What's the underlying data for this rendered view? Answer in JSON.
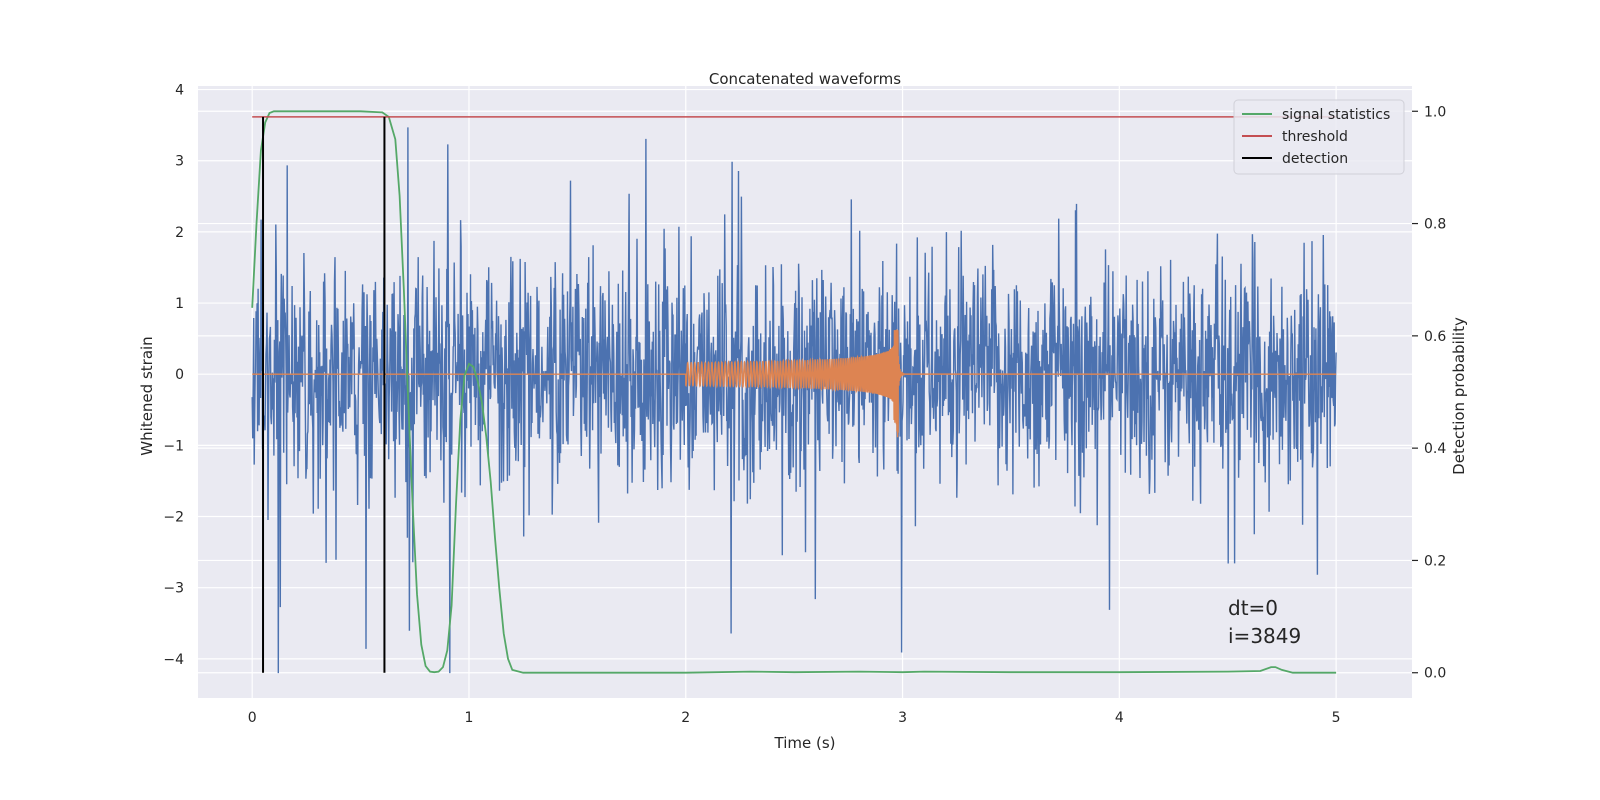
{
  "chart_data": {
    "type": "line",
    "title": "Concatenated waveforms",
    "xlabel": "Time (s)",
    "ylabel_left": "Whitened strain",
    "ylabel_right": "Detection probability",
    "xlim": [
      -0.25,
      5.35
    ],
    "ylim_left": [
      -4.55,
      4.05
    ],
    "ylim_right": [
      -0.045,
      1.045
    ],
    "x_ticks": [
      0,
      1,
      2,
      3,
      4,
      5
    ],
    "y_ticks_left": [
      -4,
      -3,
      -2,
      -1,
      0,
      1,
      2,
      3,
      4
    ],
    "y_ticks_right": [
      0.0,
      0.2,
      0.4,
      0.6,
      0.8,
      1.0
    ],
    "x_tick_labels": [
      "0",
      "1",
      "2",
      "3",
      "4",
      "5"
    ],
    "y_tick_labels_left": [
      "−4",
      "−3",
      "−2",
      "−1",
      "0",
      "1",
      "2",
      "3",
      "4"
    ],
    "y_tick_labels_right": [
      "0.0",
      "0.2",
      "0.4",
      "0.6",
      "0.8",
      "1.0"
    ],
    "grid": true,
    "background": "#eaeaf2",
    "legend_position": "top-right",
    "series": [
      {
        "name": "",
        "axis": "left",
        "color": "#4c72b0",
        "description": "whitened noisy strain",
        "x_range": [
          0,
          5
        ],
        "amplitude_envelope": [
          -4.2,
          3.65
        ]
      },
      {
        "name": "",
        "axis": "left",
        "color": "#dd8452",
        "x_range": [
          0,
          5
        ],
        "chirp_start": 2.0,
        "chirp_merger": 2.98,
        "chirp_peak": 0.62,
        "chirp_min": -0.9
      },
      {
        "name": "signal statistics",
        "axis": "right",
        "color": "#55a868",
        "x": [
          0.0,
          0.02,
          0.04,
          0.06,
          0.08,
          0.1,
          0.2,
          0.3,
          0.4,
          0.5,
          0.6,
          0.63,
          0.66,
          0.68,
          0.7,
          0.72,
          0.74,
          0.76,
          0.78,
          0.8,
          0.82,
          0.84,
          0.86,
          0.88,
          0.9,
          0.92,
          0.94,
          0.96,
          0.98,
          1.0,
          1.02,
          1.04,
          1.06,
          1.08,
          1.1,
          1.12,
          1.14,
          1.16,
          1.18,
          1.2,
          1.25,
          1.5,
          2.0,
          2.3,
          2.5,
          2.8,
          3.0,
          3.1,
          3.5,
          4.0,
          4.5,
          4.65,
          4.7,
          4.72,
          4.75,
          4.8,
          5.0
        ],
        "values": [
          0.65,
          0.8,
          0.93,
          0.98,
          0.997,
          1.0,
          1.0,
          1.0,
          1.0,
          1.0,
          0.998,
          0.99,
          0.95,
          0.85,
          0.68,
          0.48,
          0.3,
          0.14,
          0.05,
          0.012,
          0.002,
          0.001,
          0.002,
          0.01,
          0.04,
          0.12,
          0.3,
          0.45,
          0.53,
          0.55,
          0.545,
          0.52,
          0.48,
          0.42,
          0.34,
          0.24,
          0.15,
          0.07,
          0.025,
          0.005,
          0.0,
          0.0,
          0.0,
          0.002,
          0.001,
          0.002,
          0.001,
          0.002,
          0.001,
          0.001,
          0.002,
          0.003,
          0.01,
          0.01,
          0.005,
          0.0,
          0.0
        ]
      },
      {
        "name": "threshold",
        "axis": "right",
        "color": "#c44e52",
        "x": [
          0,
          5
        ],
        "values": [
          0.99,
          0.99
        ]
      },
      {
        "name": "detection",
        "axis": "right",
        "color": "#000000",
        "vlines": [
          0.05,
          0.61
        ],
        "y_range": [
          0.0,
          0.99
        ]
      }
    ],
    "annotation": {
      "lines": [
        "dt=0",
        "i=3849"
      ]
    },
    "legend": [
      {
        "label": "signal statistics",
        "color": "#55a868"
      },
      {
        "label": "threshold",
        "color": "#c44e52"
      },
      {
        "label": "detection",
        "color": "#000000"
      }
    ]
  }
}
